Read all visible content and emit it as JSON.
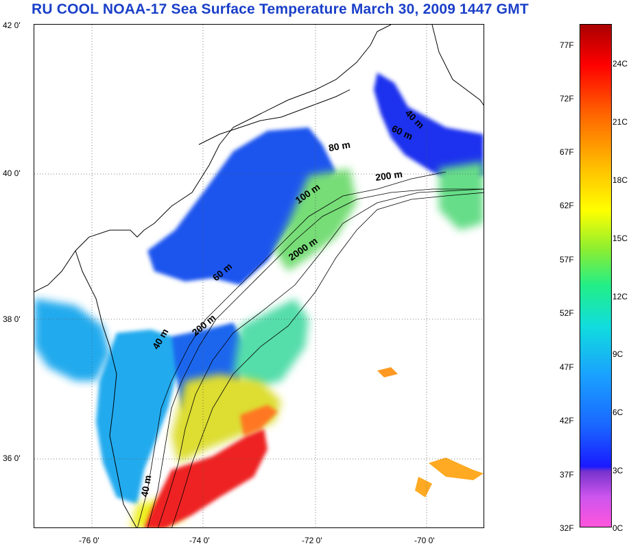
{
  "title": "RU COOL  NOAA-17 Sea Surface Temperature March 30, 2009 1447 GMT",
  "latitude_ticks": [
    "42 0'",
    "40 0'",
    "38 0'",
    "36 0'"
  ],
  "longitude_ticks": [
    "-76 0'",
    "-74 0'",
    "-72 0'",
    "-70 0'"
  ],
  "isobath_labels": [
    "40 m",
    "60 m",
    "80 m",
    "200 m",
    "100 m",
    "2000 m",
    "60 m",
    "200 m",
    "40 m",
    "40 m"
  ],
  "colorbar": {
    "fahrenheit_labels": [
      "77F",
      "72F",
      "67F",
      "62F",
      "57F",
      "52F",
      "47F",
      "42F",
      "37F",
      "32F"
    ],
    "celsius_labels": [
      "24C",
      "21C",
      "18C",
      "15C",
      "12C",
      "9C",
      "6C",
      "3C",
      "0C"
    ]
  },
  "colors": {
    "title": "#1a3fc8",
    "cold": "#1a44ee",
    "cool": "#22aaee",
    "mild": "#88dd55",
    "warm": "#eeee22",
    "hot": "#ee2222",
    "coast": "#000000"
  }
}
